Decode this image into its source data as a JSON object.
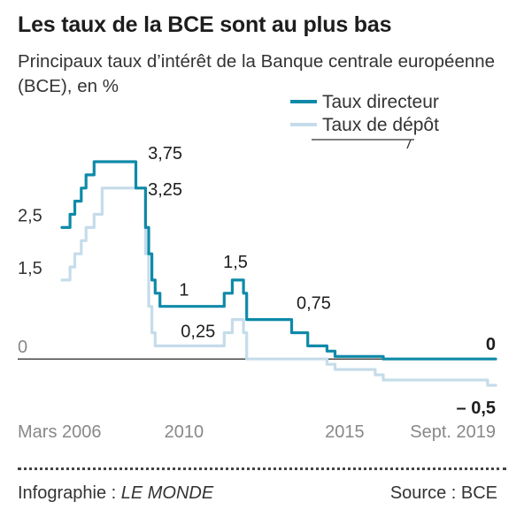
{
  "header": {
    "title": "Les taux de la BCE sont au plus bas",
    "subtitle": "Principaux taux d’intérêt de la Banque centrale européenne (BCE), en %"
  },
  "footer": {
    "credit_prefix": "Infographie : ",
    "credit_name": "LE MONDE",
    "source": "Source : BCE"
  },
  "colors": {
    "directeur": "#0e8aa8",
    "depot": "#c5dcea",
    "axis": "#222222",
    "tick_text": "#888888"
  },
  "chart_data": {
    "type": "line",
    "title": "Les taux de la BCE sont au plus bas",
    "subtitle": "Principaux taux d’intérêt de la Banque centrale européenne (BCE), en %",
    "legend_position": "top-right",
    "grid": false,
    "x_unit": "year",
    "xlim": [
      2006.2,
      2019.7
    ],
    "ylim": [
      -0.5,
      3.75
    ],
    "x_ticks": [
      {
        "x": 2006.2,
        "label": "Mars 2006"
      },
      {
        "x": 2010,
        "label": "2010"
      },
      {
        "x": 2015,
        "label": "2015"
      },
      {
        "x": 2019.7,
        "label": "Sept. 2019"
      }
    ],
    "y_ticks": [
      {
        "y": 2.5,
        "label": "2,5"
      },
      {
        "y": 1.5,
        "label": "1,5"
      },
      {
        "y": 0,
        "label": "0"
      }
    ],
    "series": [
      {
        "name": "Taux directeur",
        "color": "#0e8aa8",
        "x": [
          2006.2,
          2006.45,
          2006.45,
          2006.6,
          2006.6,
          2006.8,
          2006.8,
          2006.95,
          2006.95,
          2007.2,
          2007.2,
          2007.45,
          2007.45,
          2008.5,
          2008.5,
          2008.8,
          2008.8,
          2008.9,
          2008.9,
          2009.0,
          2009.0,
          2009.1,
          2009.1,
          2009.25,
          2009.25,
          2009.35,
          2009.35,
          2011.25,
          2011.25,
          2011.5,
          2011.5,
          2011.85,
          2011.85,
          2011.95,
          2011.95,
          2013.35,
          2013.35,
          2013.85,
          2013.85,
          2014.45,
          2014.45,
          2014.7,
          2014.7,
          2016.2,
          2016.2,
          2019.7
        ],
        "y": [
          2.5,
          2.5,
          2.75,
          2.75,
          3.0,
          3.0,
          3.25,
          3.25,
          3.5,
          3.5,
          3.75,
          3.75,
          3.75,
          3.75,
          3.25,
          3.25,
          2.5,
          2.5,
          2.0,
          2.0,
          1.5,
          1.5,
          1.25,
          1.25,
          1.0,
          1.0,
          1.0,
          1.0,
          1.25,
          1.25,
          1.5,
          1.5,
          1.25,
          1.25,
          0.75,
          0.75,
          0.5,
          0.5,
          0.25,
          0.25,
          0.15,
          0.15,
          0.05,
          0.05,
          0.0,
          0.0
        ],
        "annotations": [
          {
            "x": 2008.6,
            "y": 3.75,
            "label": "3,75"
          },
          {
            "x": 2010.0,
            "y": 1.0,
            "label": "1"
          },
          {
            "x": 2011.6,
            "y": 1.5,
            "label": "1,5"
          },
          {
            "x": 2013.5,
            "y": 0.75,
            "label": "0,75"
          },
          {
            "x": 2019.7,
            "y": 0.0,
            "label": "0"
          }
        ]
      },
      {
        "name": "Taux de dépôt",
        "color": "#c5dcea",
        "x": [
          2006.2,
          2006.45,
          2006.45,
          2006.6,
          2006.6,
          2006.8,
          2006.8,
          2006.95,
          2006.95,
          2007.2,
          2007.2,
          2007.45,
          2007.45,
          2008.5,
          2008.5,
          2008.8,
          2008.8,
          2008.9,
          2008.9,
          2009.0,
          2009.0,
          2009.1,
          2009.1,
          2009.25,
          2009.25,
          2011.25,
          2011.25,
          2011.5,
          2011.5,
          2011.85,
          2011.85,
          2011.95,
          2011.95,
          2014.45,
          2014.45,
          2014.7,
          2014.7,
          2015.95,
          2015.95,
          2016.2,
          2016.2,
          2019.45,
          2019.45,
          2019.7
        ],
        "y": [
          1.5,
          1.5,
          1.75,
          1.75,
          2.0,
          2.0,
          2.25,
          2.25,
          2.5,
          2.5,
          2.75,
          2.75,
          3.25,
          3.25,
          3.25,
          3.25,
          2.0,
          2.0,
          1.0,
          1.0,
          0.5,
          0.5,
          0.25,
          0.25,
          0.25,
          0.25,
          0.5,
          0.5,
          0.75,
          0.75,
          0.5,
          0.5,
          0.0,
          0.0,
          -0.1,
          -0.1,
          -0.2,
          -0.2,
          -0.3,
          -0.3,
          -0.4,
          -0.4,
          -0.5,
          -0.5
        ],
        "annotations": [
          {
            "x": 2008.6,
            "y": 3.25,
            "label": "3,25"
          },
          {
            "x": 2009.9,
            "y": 0.25,
            "label": "0,25"
          },
          {
            "x": 2019.7,
            "y": -0.5,
            "label": "– 0,5"
          }
        ]
      }
    ]
  }
}
